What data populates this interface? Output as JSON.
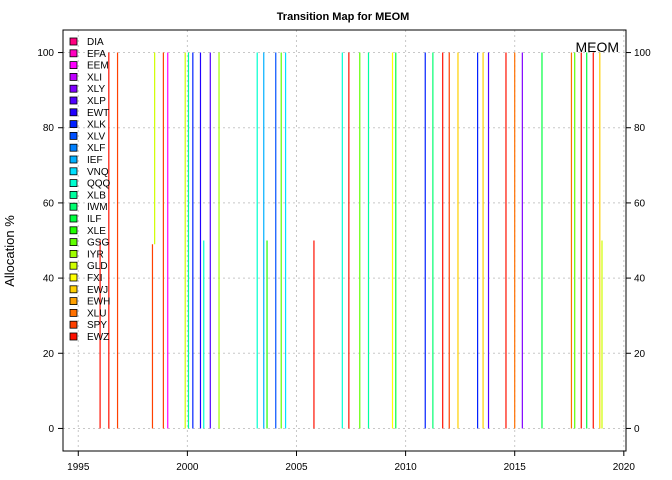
{
  "chart_data": {
    "type": "line",
    "title": "Transition Map for MEOM",
    "ylabel": "Allocation %",
    "xlabel": "",
    "annotation": "MEOM",
    "xlim": [
      1994.3,
      2020.1
    ],
    "ylim": [
      -6,
      106
    ],
    "xticks": [
      1995,
      2000,
      2005,
      2010,
      2015,
      2020
    ],
    "yticks": [
      0,
      20,
      40,
      60,
      80,
      100
    ],
    "grid": true,
    "legend_position": "top-left",
    "series": [
      {
        "name": "DIA",
        "color": "#FF0080"
      },
      {
        "name": "EFA",
        "color": "#FF00C0"
      },
      {
        "name": "EEM",
        "color": "#FF00FF"
      },
      {
        "name": "XLI",
        "color": "#C000FF"
      },
      {
        "name": "XLY",
        "color": "#8000FF"
      },
      {
        "name": "XLP",
        "color": "#5000FF"
      },
      {
        "name": "EWT",
        "color": "#2000FF"
      },
      {
        "name": "XLK",
        "color": "#0020FF"
      },
      {
        "name": "XLV",
        "color": "#0050FF"
      },
      {
        "name": "XLF",
        "color": "#0080FF"
      },
      {
        "name": "IEF",
        "color": "#00B0FF"
      },
      {
        "name": "VNQ",
        "color": "#00E0FF"
      },
      {
        "name": "QQQ",
        "color": "#00FFD0"
      },
      {
        "name": "XLB",
        "color": "#00FFA0"
      },
      {
        "name": "IWM",
        "color": "#00FF70"
      },
      {
        "name": "ILF",
        "color": "#00FF40"
      },
      {
        "name": "XLE",
        "color": "#20FF00"
      },
      {
        "name": "GSG",
        "color": "#60FF00"
      },
      {
        "name": "IYR",
        "color": "#A0FF00"
      },
      {
        "name": "GLD",
        "color": "#D0FF00"
      },
      {
        "name": "FXI",
        "color": "#FFFF00"
      },
      {
        "name": "EWJ",
        "color": "#FFD000"
      },
      {
        "name": "EWH",
        "color": "#FFA000"
      },
      {
        "name": "XLU",
        "color": "#FF7000"
      },
      {
        "name": "SPY",
        "color": "#FF4000"
      },
      {
        "name": "EWZ",
        "color": "#FF1000"
      }
    ],
    "transitions": [
      {
        "x": 1996.0,
        "y0": 0,
        "y1": 50,
        "series": "EWZ"
      },
      {
        "x": 1996.4,
        "y0": 0,
        "y1": 100,
        "series": "EWZ"
      },
      {
        "x": 1996.8,
        "y0": 0,
        "y1": 100,
        "series": "SPY"
      },
      {
        "x": 1998.4,
        "y0": 0,
        "y1": 49,
        "series": "SPY"
      },
      {
        "x": 1998.5,
        "y0": 49,
        "y1": 100,
        "series": "GLD"
      },
      {
        "x": 1998.9,
        "y0": 0,
        "y1": 100,
        "series": "SPY"
      },
      {
        "x": 1999.1,
        "y0": 0,
        "y1": 100,
        "series": "EEM"
      },
      {
        "x": 1999.9,
        "y0": 0,
        "y1": 100,
        "series": "GLD"
      },
      {
        "x": 2000.05,
        "y0": 0,
        "y1": 100,
        "series": "XLB"
      },
      {
        "x": 2000.25,
        "y0": 0,
        "y1": 100,
        "series": "XLK"
      },
      {
        "x": 2000.6,
        "y0": 0,
        "y1": 100,
        "series": "EWT"
      },
      {
        "x": 2000.75,
        "y0": 0,
        "y1": 50,
        "series": "QQQ"
      },
      {
        "x": 2001.05,
        "y0": 0,
        "y1": 100,
        "series": "XLP"
      },
      {
        "x": 2001.45,
        "y0": 0,
        "y1": 100,
        "series": "IYR"
      },
      {
        "x": 2003.2,
        "y0": 0,
        "y1": 100,
        "series": "QQQ"
      },
      {
        "x": 2003.5,
        "y0": 0,
        "y1": 100,
        "series": "IEF"
      },
      {
        "x": 2003.65,
        "y0": 0,
        "y1": 50,
        "series": "XLE"
      },
      {
        "x": 2004.05,
        "y0": 0,
        "y1": 100,
        "series": "XLV"
      },
      {
        "x": 2004.3,
        "y0": 0,
        "y1": 100,
        "series": "GSG"
      },
      {
        "x": 2004.5,
        "y0": 0,
        "y1": 100,
        "series": "VNQ"
      },
      {
        "x": 2005.8,
        "y0": 0,
        "y1": 50,
        "series": "EWZ"
      },
      {
        "x": 2007.1,
        "y0": 0,
        "y1": 100,
        "series": "QQQ"
      },
      {
        "x": 2007.4,
        "y0": 0,
        "y1": 100,
        "series": "EWZ"
      },
      {
        "x": 2007.9,
        "y0": 0,
        "y1": 100,
        "series": "GSG"
      },
      {
        "x": 2008.3,
        "y0": 0,
        "y1": 100,
        "series": "XLB"
      },
      {
        "x": 2009.4,
        "y0": 0,
        "y1": 100,
        "series": "FXI"
      },
      {
        "x": 2009.55,
        "y0": 0,
        "y1": 100,
        "series": "ILF"
      },
      {
        "x": 2010.9,
        "y0": 0,
        "y1": 100,
        "series": "XLK"
      },
      {
        "x": 2011.25,
        "y0": 0,
        "y1": 100,
        "series": "IWM"
      },
      {
        "x": 2011.7,
        "y0": 0,
        "y1": 100,
        "series": "EWZ"
      },
      {
        "x": 2012.0,
        "y0": 0,
        "y1": 100,
        "series": "SPY"
      },
      {
        "x": 2012.4,
        "y0": 0,
        "y1": 100,
        "series": "EWJ"
      },
      {
        "x": 2013.3,
        "y0": 0,
        "y1": 100,
        "series": "XLK"
      },
      {
        "x": 2013.55,
        "y0": 0,
        "y1": 100,
        "series": "EWJ"
      },
      {
        "x": 2013.8,
        "y0": 0,
        "y1": 100,
        "series": "XLP"
      },
      {
        "x": 2014.6,
        "y0": 0,
        "y1": 100,
        "series": "EWZ"
      },
      {
        "x": 2015.0,
        "y0": 0,
        "y1": 100,
        "series": "XLU"
      },
      {
        "x": 2015.35,
        "y0": 0,
        "y1": 100,
        "series": "XLY"
      },
      {
        "x": 2016.25,
        "y0": 0,
        "y1": 100,
        "series": "ILF"
      },
      {
        "x": 2017.6,
        "y0": 0,
        "y1": 100,
        "series": "XLU"
      },
      {
        "x": 2017.75,
        "y0": 0,
        "y1": 100,
        "series": "GSG"
      },
      {
        "x": 2018.05,
        "y0": 0,
        "y1": 100,
        "series": "EWZ"
      },
      {
        "x": 2018.3,
        "y0": 0,
        "y1": 100,
        "series": "ILF"
      },
      {
        "x": 2018.6,
        "y0": 0,
        "y1": 100,
        "series": "EWZ"
      },
      {
        "x": 2018.9,
        "y0": 0,
        "y1": 100,
        "series": "EWJ"
      },
      {
        "x": 2019.0,
        "y0": 0,
        "y1": 50,
        "series": "GLD"
      }
    ]
  }
}
